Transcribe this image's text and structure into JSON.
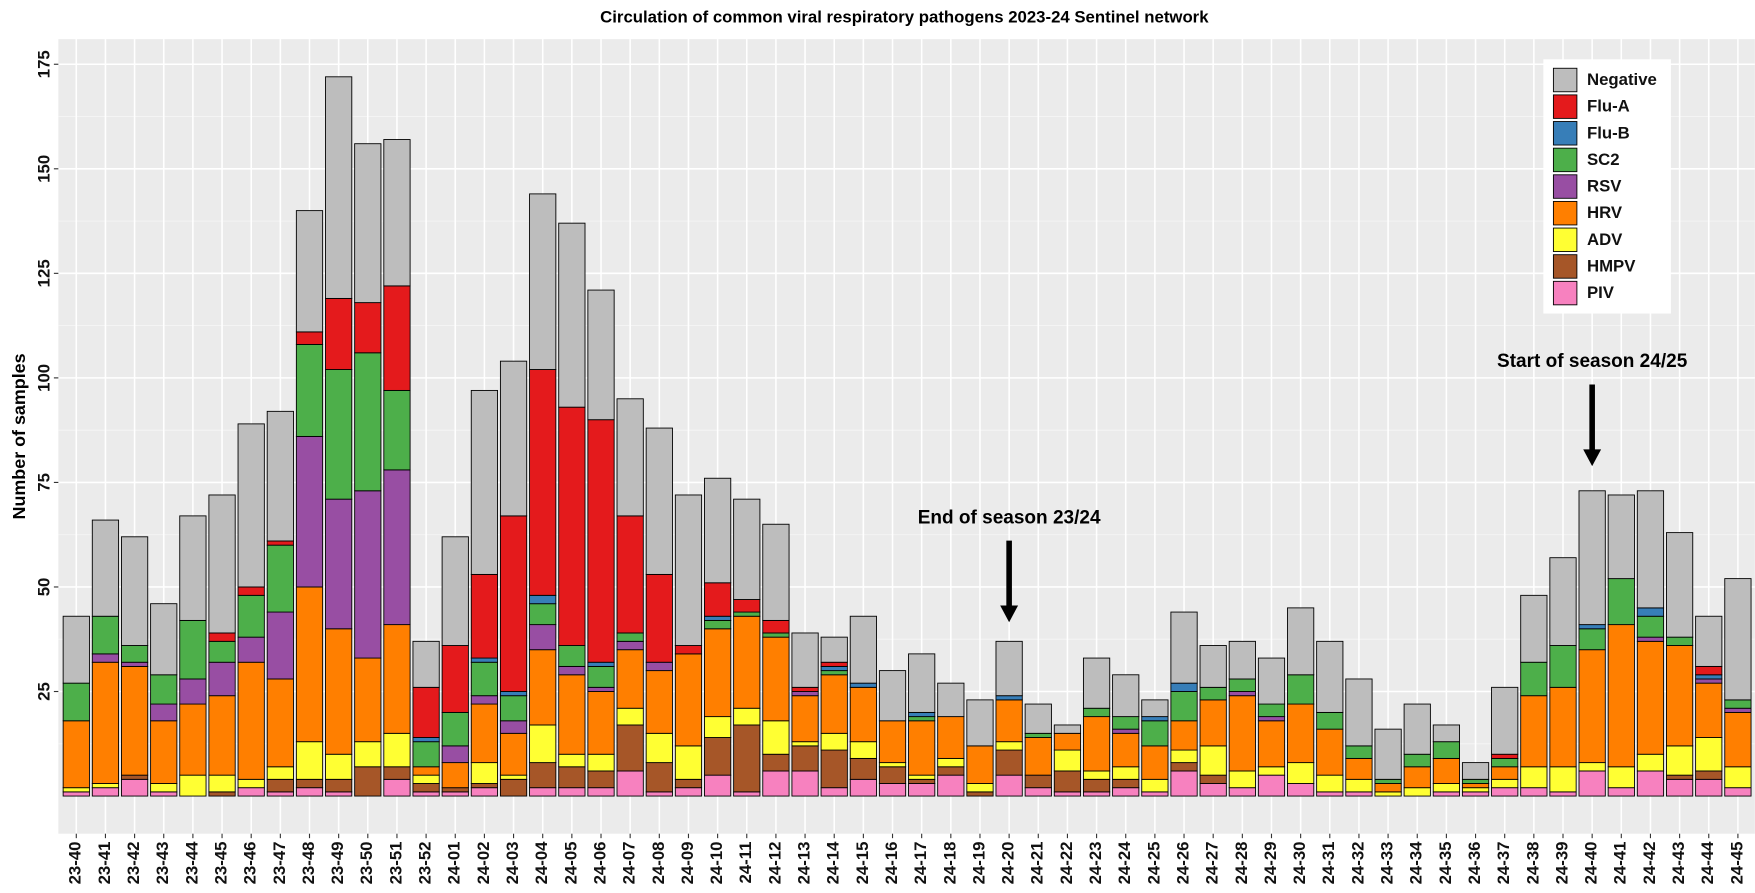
{
  "chart_data": {
    "type": "stacked_bar",
    "title": "Circulation of common viral respiratory  pathogens 2023-24 Sentinel network",
    "y_label": "Number of samples",
    "categories": [
      "23-40",
      "23-41",
      "23-42",
      "23-43",
      "23-44",
      "23-45",
      "23-46",
      "23-47",
      "23-48",
      "23-49",
      "23-50",
      "23-51",
      "23-52",
      "24-01",
      "24-02",
      "24-03",
      "24-04",
      "24-05",
      "24-06",
      "24-07",
      "24-08",
      "24-09",
      "24-10",
      "24-11",
      "24-12",
      "24-13",
      "24-14",
      "24-15",
      "24-16",
      "24-17",
      "24-18",
      "24-19",
      "24-20",
      "24-21",
      "24-22",
      "24-23",
      "24-24",
      "24-25",
      "24-26",
      "24-27",
      "24-28",
      "24-29",
      "24-30",
      "24-31",
      "24-32",
      "24-33",
      "24-34",
      "24-35",
      "24-36",
      "24-37",
      "24-38",
      "24-39",
      "24-40",
      "24-41",
      "24-42",
      "24-43",
      "24-44",
      "24-45"
    ],
    "series": [
      {
        "name": "Negative",
        "color": "#bdbdbd",
        "values": [
          16,
          23,
          26,
          17,
          25,
          33,
          39,
          31,
          29,
          53,
          38,
          35,
          11,
          26,
          44,
          37,
          42,
          44,
          31,
          28,
          35,
          36,
          25,
          24,
          23,
          13,
          6,
          16,
          12,
          14,
          8,
          11,
          13,
          7,
          2,
          12,
          10,
          4,
          17,
          10,
          9,
          11,
          16,
          17,
          16,
          12,
          12,
          4,
          4,
          16,
          16,
          21,
          32,
          20,
          28,
          25,
          12,
          29
        ]
      },
      {
        "name": "Flu-A",
        "color": "#e41a1c",
        "values": [
          0,
          0,
          0,
          0,
          0,
          2,
          2,
          1,
          3,
          17,
          12,
          25,
          12,
          16,
          20,
          42,
          54,
          57,
          58,
          28,
          21,
          2,
          8,
          3,
          3,
          1,
          1,
          0,
          0,
          0,
          0,
          0,
          0,
          0,
          0,
          0,
          0,
          0,
          0,
          0,
          0,
          0,
          0,
          0,
          0,
          0,
          0,
          0,
          0,
          1,
          0,
          0,
          0,
          0,
          0,
          0,
          2,
          0
        ]
      },
      {
        "name": "Flu-B",
        "color": "#377eb8",
        "values": [
          0,
          0,
          0,
          0,
          0,
          0,
          0,
          0,
          0,
          0,
          0,
          0,
          1,
          0,
          1,
          1,
          2,
          0,
          1,
          0,
          0,
          0,
          1,
          0,
          0,
          0,
          1,
          1,
          0,
          1,
          0,
          0,
          1,
          0,
          0,
          0,
          0,
          1,
          2,
          0,
          0,
          0,
          0,
          0,
          0,
          0,
          0,
          0,
          0,
          0,
          0,
          0,
          1,
          0,
          2,
          0,
          1,
          0
        ]
      },
      {
        "name": "SC2",
        "color": "#4daf4a",
        "values": [
          9,
          9,
          4,
          7,
          14,
          5,
          10,
          16,
          22,
          31,
          33,
          19,
          6,
          8,
          8,
          6,
          5,
          5,
          5,
          2,
          0,
          0,
          2,
          1,
          1,
          0,
          1,
          0,
          0,
          1,
          0,
          0,
          0,
          1,
          0,
          2,
          3,
          6,
          7,
          3,
          3,
          3,
          7,
          4,
          3,
          1,
          3,
          4,
          1,
          2,
          8,
          10,
          5,
          11,
          5,
          2,
          0,
          2
        ]
      },
      {
        "name": "RSV",
        "color": "#984ea3",
        "values": [
          0,
          2,
          1,
          4,
          6,
          8,
          6,
          16,
          36,
          31,
          40,
          37,
          0,
          4,
          2,
          3,
          6,
          2,
          1,
          2,
          2,
          0,
          0,
          0,
          0,
          1,
          0,
          0,
          0,
          0,
          0,
          0,
          0,
          0,
          0,
          0,
          1,
          0,
          0,
          0,
          1,
          1,
          0,
          0,
          0,
          0,
          0,
          0,
          0,
          0,
          0,
          0,
          0,
          0,
          1,
          0,
          1,
          1
        ]
      },
      {
        "name": "HRV",
        "color": "#ff7f00",
        "values": [
          16,
          29,
          26,
          15,
          17,
          19,
          28,
          21,
          37,
          30,
          20,
          26,
          2,
          6,
          14,
          10,
          18,
          19,
          15,
          14,
          15,
          22,
          21,
          22,
          20,
          11,
          14,
          13,
          10,
          13,
          10,
          9,
          10,
          9,
          4,
          13,
          8,
          8,
          7,
          11,
          18,
          11,
          14,
          11,
          5,
          2,
          5,
          6,
          1,
          3,
          17,
          19,
          27,
          34,
          27,
          24,
          13,
          13
        ]
      },
      {
        "name": "ADV",
        "color": "#ffff33",
        "values": [
          1,
          1,
          0,
          2,
          5,
          4,
          2,
          3,
          9,
          6,
          6,
          8,
          2,
          0,
          5,
          1,
          9,
          3,
          4,
          4,
          7,
          8,
          5,
          4,
          8,
          1,
          4,
          4,
          1,
          1,
          2,
          2,
          2,
          0,
          5,
          2,
          3,
          3,
          3,
          7,
          4,
          2,
          5,
          4,
          3,
          1,
          2,
          2,
          1,
          2,
          5,
          6,
          2,
          5,
          4,
          7,
          8,
          5
        ]
      },
      {
        "name": "HMPV",
        "color": "#a65628",
        "values": [
          0,
          0,
          1,
          0,
          0,
          1,
          0,
          3,
          2,
          3,
          7,
          3,
          2,
          1,
          1,
          4,
          6,
          5,
          4,
          11,
          7,
          2,
          9,
          16,
          4,
          6,
          9,
          5,
          4,
          1,
          2,
          1,
          6,
          3,
          5,
          3,
          2,
          0,
          2,
          2,
          0,
          0,
          0,
          0,
          0,
          0,
          0,
          0,
          0,
          0,
          0,
          0,
          0,
          0,
          0,
          1,
          2,
          0
        ]
      },
      {
        "name": "PIV",
        "color": "#f781bf",
        "values": [
          1,
          2,
          4,
          1,
          0,
          0,
          2,
          1,
          2,
          1,
          0,
          4,
          1,
          1,
          2,
          0,
          2,
          2,
          2,
          6,
          1,
          2,
          5,
          1,
          6,
          6,
          2,
          4,
          3,
          3,
          5,
          0,
          5,
          2,
          1,
          1,
          2,
          1,
          6,
          3,
          2,
          5,
          3,
          1,
          1,
          0,
          0,
          1,
          1,
          2,
          2,
          1,
          6,
          2,
          6,
          4,
          4,
          2
        ]
      }
    ],
    "ylim": [
      -9,
      181
    ],
    "yticks": [
      25,
      50,
      75,
      100,
      125,
      150,
      175
    ],
    "grid": true,
    "legend": "top-right",
    "annotations": [
      {
        "text": "End of season 23/24",
        "x": "24-20"
      },
      {
        "text": "Start of season 24/25",
        "x": "24-40"
      }
    ]
  }
}
